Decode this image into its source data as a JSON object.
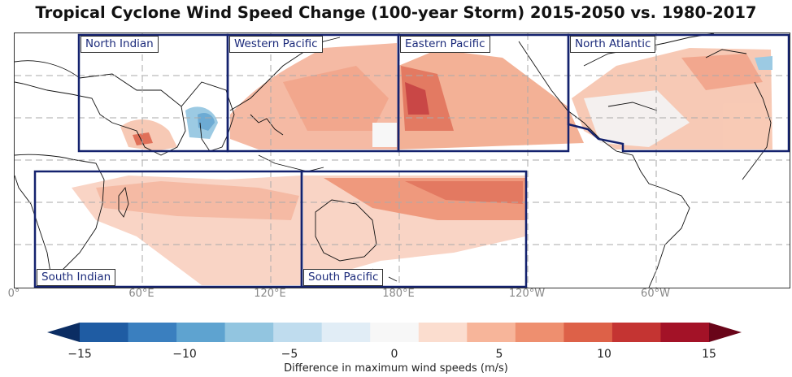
{
  "title": "Tropical Cyclone Wind Speed Change (100-year Storm) 2015-2050 vs. 1980-2017",
  "regions": [
    {
      "name": "North Indian"
    },
    {
      "name": "Western Pacific"
    },
    {
      "name": "Eastern Pacific"
    },
    {
      "name": "North Atlantic"
    },
    {
      "name": "South Indian"
    },
    {
      "name": "South Pacific"
    }
  ],
  "longitude_labels": [
    "0°",
    "60°E",
    "120°E",
    "180°E",
    "120°W",
    "60°W"
  ],
  "colorbar": {
    "ticks": [
      "−15",
      "−10",
      "−5",
      "0",
      "5",
      "10",
      "15"
    ],
    "label": "Difference in maximum wind speeds (m/s)",
    "colors": [
      "#0b2d63",
      "#1f5ca3",
      "#3a7fbf",
      "#5ea3d0",
      "#92c5e0",
      "#bfdcee",
      "#e1edf6",
      "#f7f7f7",
      "#fbddcf",
      "#f7b59a",
      "#ee8f6f",
      "#dd6148",
      "#c43432",
      "#a31227",
      "#690519"
    ]
  },
  "style": {
    "box_color": "#14226e",
    "land_outline": "#111111",
    "grid_color": "#aaaaaa"
  }
}
